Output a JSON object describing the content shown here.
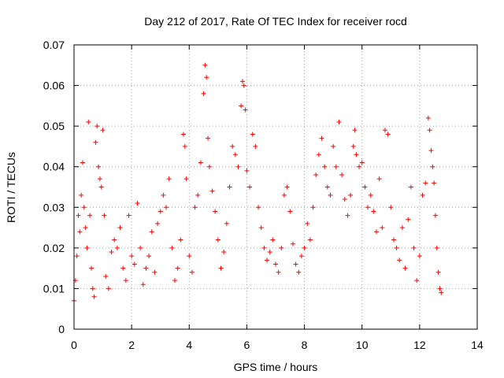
{
  "chart_data": {
    "type": "scatter",
    "title": "Day 212 of 2017, Rate Of TEC Index for receiver rocd",
    "xlabel": "GPS time / hours",
    "ylabel": "ROTI / TECUs",
    "xlim": [
      0,
      14
    ],
    "ylim": [
      0,
      0.07
    ],
    "x_ticks": [
      "0",
      "2",
      "4",
      "6",
      "8",
      "10",
      "12",
      "14"
    ],
    "y_ticks": [
      "0",
      "0.01",
      "0.02",
      "0.03",
      "0.04",
      "0.05",
      "0.06",
      "0.07"
    ],
    "grid": true,
    "marker": "plus",
    "color": "#ff0000",
    "x_range_of_data": [
      0,
      12.75
    ],
    "series": [
      {
        "values": [
          [
            0.0,
            0.007
          ],
          [
            0.05,
            0.012
          ],
          [
            0.1,
            0.018
          ],
          [
            0.15,
            0.028
          ],
          [
            0.2,
            0.024
          ],
          [
            0.25,
            0.033
          ],
          [
            0.3,
            0.041
          ],
          [
            0.35,
            0.03
          ],
          [
            0.4,
            0.025
          ],
          [
            0.45,
            0.02
          ],
          [
            0.5,
            0.051
          ],
          [
            0.55,
            0.028
          ],
          [
            0.6,
            0.015
          ],
          [
            0.65,
            0.01
          ],
          [
            0.7,
            0.008
          ],
          [
            0.75,
            0.046
          ],
          [
            0.8,
            0.05
          ],
          [
            0.85,
            0.04
          ],
          [
            0.9,
            0.037
          ],
          [
            0.95,
            0.035
          ],
          [
            1.0,
            0.049
          ],
          [
            1.05,
            0.028
          ],
          [
            1.1,
            0.013
          ],
          [
            1.2,
            0.01
          ],
          [
            1.3,
            0.019
          ],
          [
            1.4,
            0.022
          ],
          [
            1.5,
            0.02
          ],
          [
            1.6,
            0.025
          ],
          [
            1.7,
            0.015
          ],
          [
            1.8,
            0.012
          ],
          [
            1.9,
            0.028
          ],
          [
            2.0,
            0.018
          ],
          [
            2.1,
            0.016
          ],
          [
            2.2,
            0.031
          ],
          [
            2.3,
            0.02
          ],
          [
            2.4,
            0.011
          ],
          [
            2.5,
            0.015
          ],
          [
            2.6,
            0.018
          ],
          [
            2.7,
            0.024
          ],
          [
            2.8,
            0.014
          ],
          [
            2.9,
            0.026
          ],
          [
            3.0,
            0.029
          ],
          [
            3.1,
            0.033
          ],
          [
            3.2,
            0.03
          ],
          [
            3.3,
            0.037
          ],
          [
            3.4,
            0.02
          ],
          [
            3.5,
            0.012
          ],
          [
            3.6,
            0.015
          ],
          [
            3.7,
            0.022
          ],
          [
            3.8,
            0.048
          ],
          [
            3.85,
            0.045
          ],
          [
            3.9,
            0.037
          ],
          [
            4.0,
            0.018
          ],
          [
            4.1,
            0.014
          ],
          [
            4.2,
            0.03
          ],
          [
            4.3,
            0.033
          ],
          [
            4.4,
            0.041
          ],
          [
            4.5,
            0.058
          ],
          [
            4.55,
            0.065
          ],
          [
            4.6,
            0.062
          ],
          [
            4.65,
            0.047
          ],
          [
            4.7,
            0.04
          ],
          [
            4.8,
            0.034
          ],
          [
            4.9,
            0.029
          ],
          [
            5.0,
            0.022
          ],
          [
            5.1,
            0.015
          ],
          [
            5.2,
            0.019
          ],
          [
            5.3,
            0.026
          ],
          [
            5.4,
            0.035
          ],
          [
            5.5,
            0.045
          ],
          [
            5.6,
            0.043
          ],
          [
            5.7,
            0.04
          ],
          [
            5.8,
            0.055
          ],
          [
            5.85,
            0.061
          ],
          [
            5.9,
            0.06
          ],
          [
            5.95,
            0.054
          ],
          [
            6.0,
            0.039
          ],
          [
            6.1,
            0.035
          ],
          [
            6.2,
            0.048
          ],
          [
            6.3,
            0.045
          ],
          [
            6.4,
            0.03
          ],
          [
            6.5,
            0.025
          ],
          [
            6.6,
            0.02
          ],
          [
            6.7,
            0.017
          ],
          [
            6.8,
            0.019
          ],
          [
            6.9,
            0.022
          ],
          [
            7.0,
            0.016
          ],
          [
            7.1,
            0.014
          ],
          [
            7.2,
            0.02
          ],
          [
            7.3,
            0.033
          ],
          [
            7.4,
            0.035
          ],
          [
            7.5,
            0.029
          ],
          [
            7.6,
            0.021
          ],
          [
            7.7,
            0.016
          ],
          [
            7.8,
            0.014
          ],
          [
            7.9,
            0.018
          ],
          [
            8.0,
            0.02
          ],
          [
            8.1,
            0.026
          ],
          [
            8.2,
            0.022
          ],
          [
            8.3,
            0.03
          ],
          [
            8.4,
            0.038
          ],
          [
            8.5,
            0.043
          ],
          [
            8.6,
            0.047
          ],
          [
            8.7,
            0.04
          ],
          [
            8.8,
            0.035
          ],
          [
            8.9,
            0.033
          ],
          [
            9.0,
            0.045
          ],
          [
            9.1,
            0.04
          ],
          [
            9.2,
            0.051
          ],
          [
            9.3,
            0.038
          ],
          [
            9.4,
            0.032
          ],
          [
            9.5,
            0.028
          ],
          [
            9.6,
            0.033
          ],
          [
            9.7,
            0.045
          ],
          [
            9.75,
            0.049
          ],
          [
            9.8,
            0.043
          ],
          [
            9.9,
            0.04
          ],
          [
            10.0,
            0.041
          ],
          [
            10.1,
            0.035
          ],
          [
            10.2,
            0.03
          ],
          [
            10.3,
            0.033
          ],
          [
            10.4,
            0.029
          ],
          [
            10.5,
            0.024
          ],
          [
            10.6,
            0.037
          ],
          [
            10.7,
            0.025
          ],
          [
            10.8,
            0.049
          ],
          [
            10.9,
            0.048
          ],
          [
            11.0,
            0.03
          ],
          [
            11.1,
            0.022
          ],
          [
            11.2,
            0.02
          ],
          [
            11.3,
            0.017
          ],
          [
            11.4,
            0.025
          ],
          [
            11.5,
            0.015
          ],
          [
            11.6,
            0.027
          ],
          [
            11.7,
            0.035
          ],
          [
            11.8,
            0.02
          ],
          [
            11.9,
            0.012
          ],
          [
            12.0,
            0.018
          ],
          [
            12.1,
            0.033
          ],
          [
            12.2,
            0.036
          ],
          [
            12.3,
            0.052
          ],
          [
            12.35,
            0.049
          ],
          [
            12.4,
            0.044
          ],
          [
            12.45,
            0.04
          ],
          [
            12.5,
            0.036
          ],
          [
            12.55,
            0.028
          ],
          [
            12.6,
            0.02
          ],
          [
            12.65,
            0.014
          ],
          [
            12.7,
            0.01
          ],
          [
            12.75,
            0.009
          ]
        ]
      }
    ]
  }
}
